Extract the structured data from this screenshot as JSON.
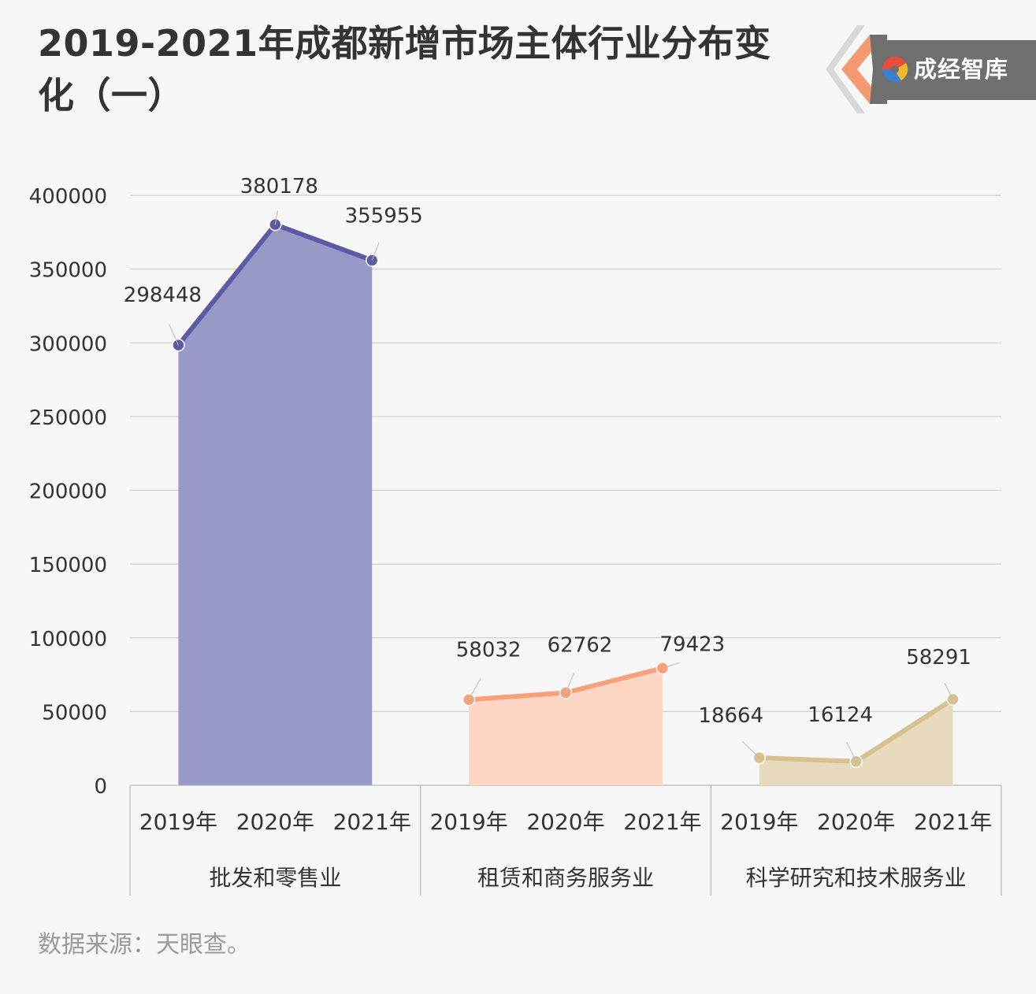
{
  "title": "2019-2021年成都新增市场主体行业分布变化（一）",
  "logo": {
    "text": "成经智库",
    "icon": "swirl-logo-icon"
  },
  "source": "数据来源：天眼查。",
  "chart_data": {
    "type": "line",
    "title": "2019-2021年成都新增市场主体行业分布变化（一）",
    "ylim": [
      0,
      400000
    ],
    "yticks": [
      "0",
      "50000",
      "100000",
      "150000",
      "200000",
      "250000",
      "300000",
      "350000",
      "400000"
    ],
    "grid": true,
    "legend": "none",
    "groups": [
      {
        "name": "批发和零售业",
        "x": [
          "2019年",
          "2020年",
          "2021年"
        ],
        "values": [
          298448,
          380178,
          355955
        ],
        "labels": [
          "298448",
          "380178",
          "355955"
        ],
        "color": "#5b5ba3",
        "fill": "#9999c7"
      },
      {
        "name": "租赁和商务服务业",
        "x": [
          "2019年",
          "2020年",
          "2021年"
        ],
        "values": [
          58032,
          62762,
          79423
        ],
        "labels": [
          "58032",
          "62762",
          "79423"
        ],
        "color": "#f7a07c",
        "fill": "#ffd6c2"
      },
      {
        "name": "科学研究和技术服务业",
        "x": [
          "2019年",
          "2020年",
          "2021年"
        ],
        "values": [
          18664,
          16124,
          58291
        ],
        "labels": [
          "18664",
          "16124",
          "58291"
        ],
        "color": "#d9c08f",
        "fill": "#e8dbbd"
      }
    ]
  }
}
